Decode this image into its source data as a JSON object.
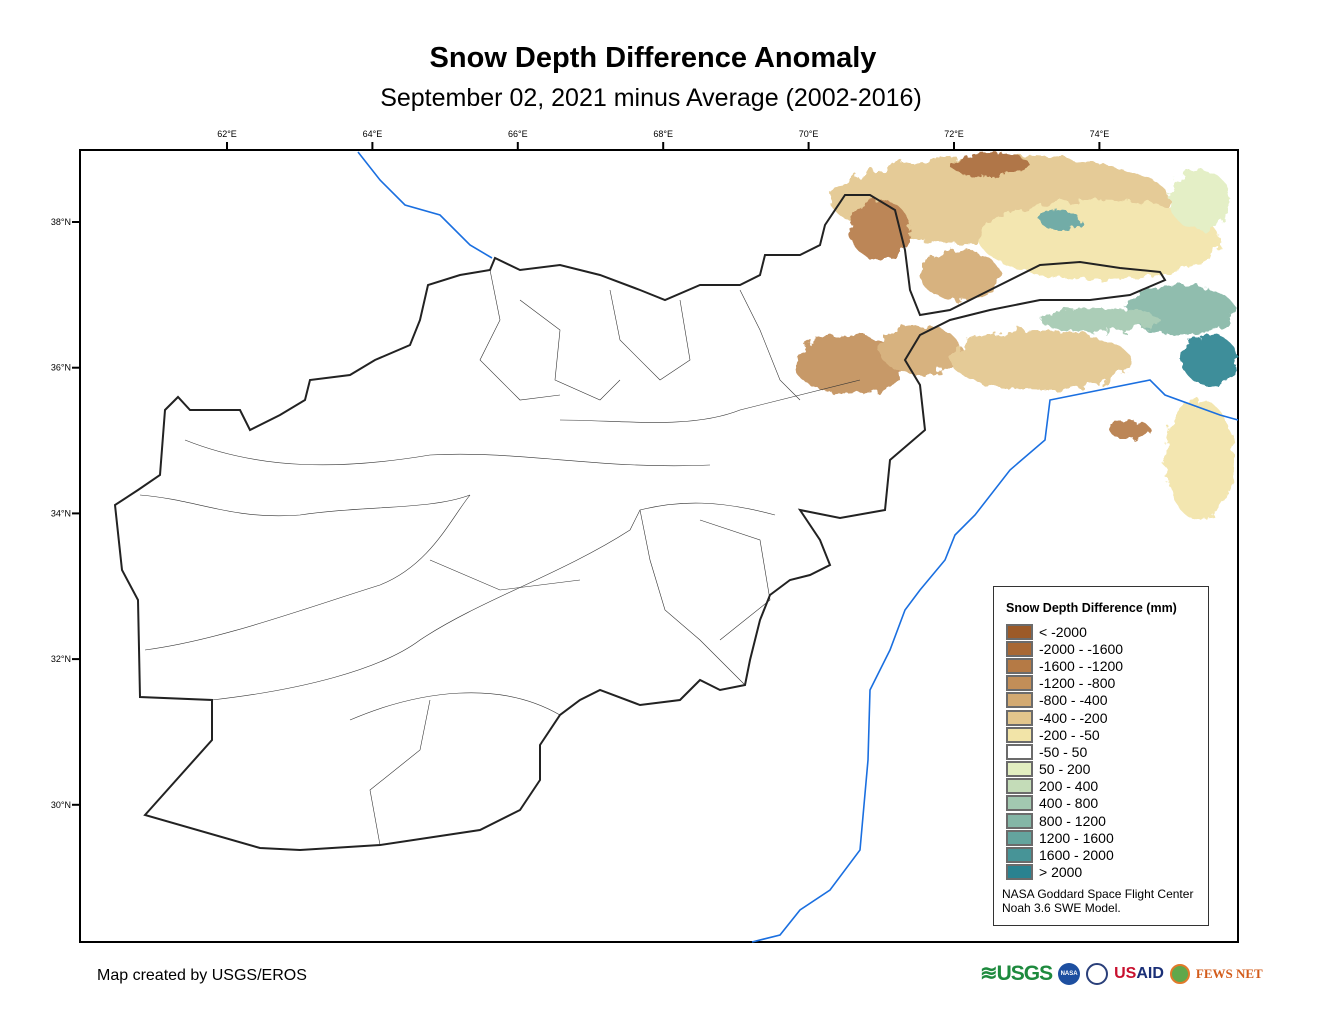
{
  "title": "Snow Depth Difference Anomaly",
  "subtitle": "September 02, 2021 minus Average (2002-2016)",
  "axes": {
    "longitude_ticks": [
      "62°E",
      "64°E",
      "66°E",
      "68°E",
      "70°E",
      "72°E",
      "74°E"
    ],
    "latitude_ticks": [
      "38°N",
      "36°N",
      "34°N",
      "32°N",
      "30°N"
    ]
  },
  "legend": {
    "title": "Snow Depth Difference (mm)",
    "items": [
      {
        "label": "< -2000",
        "color": "#9c5a28"
      },
      {
        "label": "-2000 - -1600",
        "color": "#a86834"
      },
      {
        "label": "-1600 - -1200",
        "color": "#b57a45"
      },
      {
        "label": "-1200 - -800",
        "color": "#c28e58"
      },
      {
        "label": "-800 - -400",
        "color": "#d3aa72"
      },
      {
        "label": "-400 - -200",
        "color": "#e3c68c"
      },
      {
        "label": "-200 - -50",
        "color": "#f2e4a8"
      },
      {
        "label": "-50 - 50",
        "color": "#ffffff"
      },
      {
        "label": "50 - 200",
        "color": "#e2eec0"
      },
      {
        "label": "200 - 400",
        "color": "#c4dcb8"
      },
      {
        "label": "400 - 800",
        "color": "#a2c8b0"
      },
      {
        "label": "800 - 1200",
        "color": "#84b6a6"
      },
      {
        "label": "1200 - 1600",
        "color": "#64a49e"
      },
      {
        "label": "1600 - 2000",
        "color": "#479497"
      },
      {
        "label": "> 2000",
        "color": "#2a8290"
      }
    ],
    "credit_line1": "NASA Goddard Space Flight Center",
    "credit_line2": "Noah 3.6 SWE Model."
  },
  "footer": {
    "made_by": "Map created by USGS/EROS",
    "logos": {
      "usgs": "USGS",
      "nasa": "NASA",
      "usaid": "USAID",
      "fews": "FEWS NET"
    }
  }
}
